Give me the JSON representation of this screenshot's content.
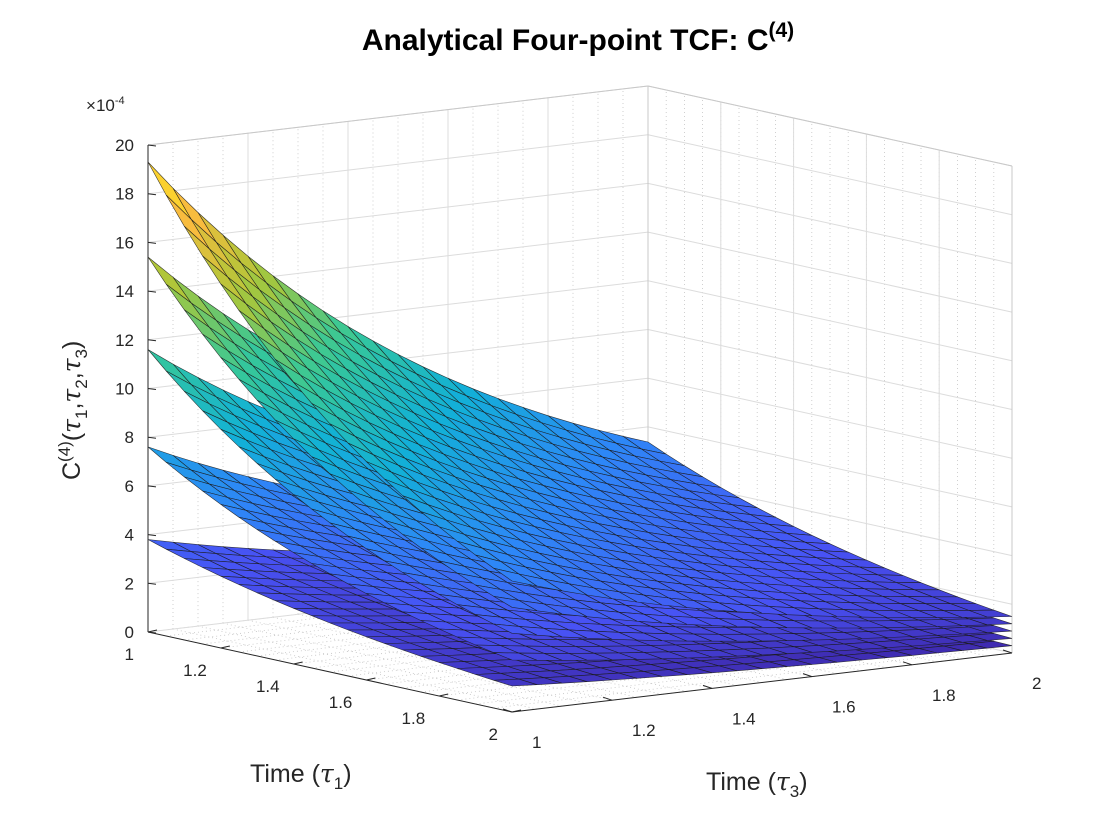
{
  "chart_data": {
    "type": "surface",
    "title_main": "Analytical Four-point TCF: C",
    "title_sup": "(4)",
    "zlabel": {
      "base": "C",
      "sup": "(4)",
      "open": "(",
      "tau": "τ",
      "sub1": "1",
      "comma1": ",",
      "sub2": "2",
      "comma2": ",",
      "sub3": "3",
      "close": ")"
    },
    "x1label": {
      "prefix": "Time (",
      "tau": "τ",
      "sub": "1",
      "suffix": ")"
    },
    "x3label": {
      "prefix": "Time (",
      "tau": "τ",
      "sub": "3",
      "suffix": ")"
    },
    "exponent": {
      "times": "×",
      "base": "10",
      "power": "-4"
    },
    "tau1_range": [
      1,
      2
    ],
    "tau3_range": [
      1,
      2
    ],
    "z_range": [
      0,
      20
    ],
    "z_scale": "1e-4",
    "tau1_ticks": [
      "1",
      "1.2",
      "1.4",
      "1.6",
      "1.8",
      "2"
    ],
    "tau3_ticks": [
      "1",
      "1.2",
      "1.4",
      "1.6",
      "1.8",
      "2"
    ],
    "z_ticks": [
      "0",
      "2",
      "4",
      "6",
      "8",
      "10",
      "12",
      "14",
      "16",
      "18",
      "20"
    ],
    "grid": true,
    "colormap": "parula",
    "grid_resolution": 21,
    "series": [
      {
        "name": "",
        "corner_max": 3.8,
        "corner_min": 0.3
      },
      {
        "name": "",
        "corner_max": 7.6,
        "corner_min": 0.6
      },
      {
        "name": "",
        "corner_max": 11.6,
        "corner_min": 0.9
      },
      {
        "name": "",
        "corner_max": 15.4,
        "corner_min": 1.2
      },
      {
        "name": "",
        "corner_max": 19.3,
        "corner_min": 1.5
      }
    ]
  }
}
